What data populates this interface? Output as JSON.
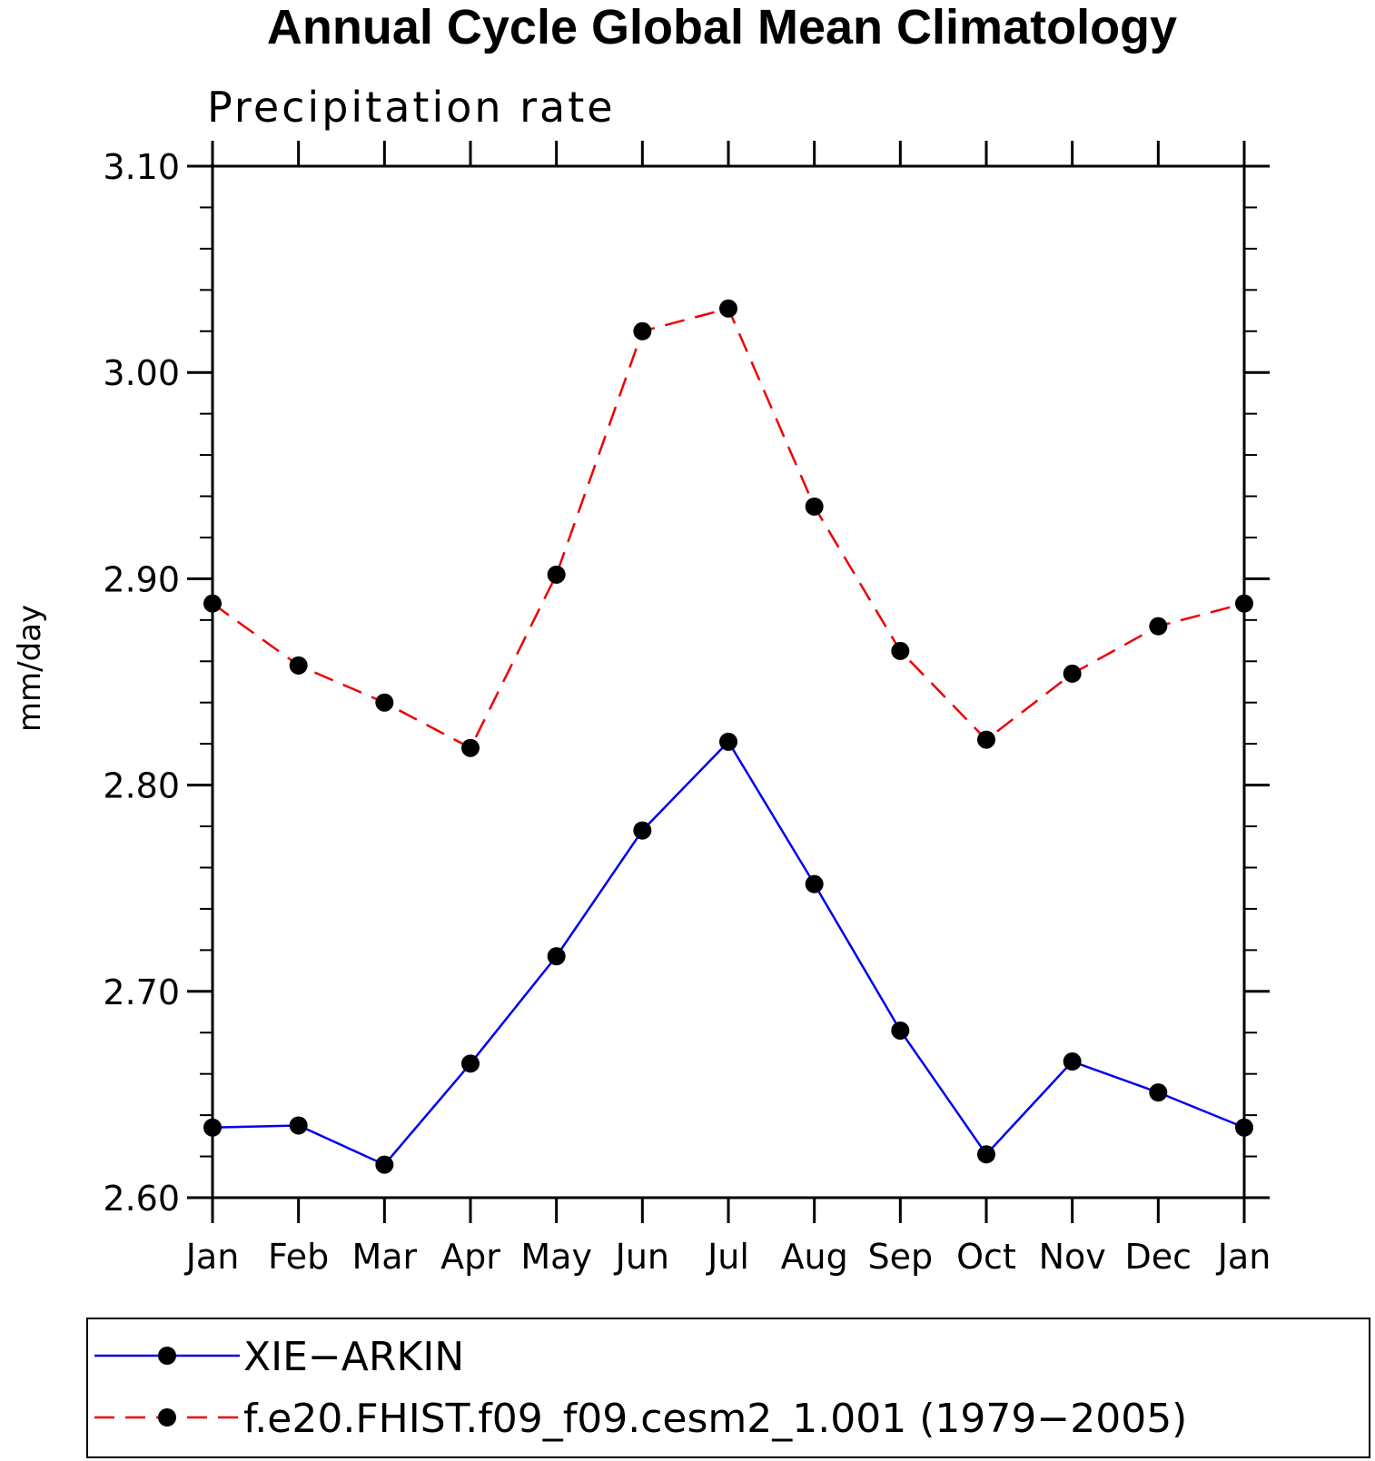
{
  "chart_data": {
    "type": "line",
    "title": "Annual Cycle Global Mean Climatology",
    "subtitle": "Precipitation rate",
    "ylabel": "mm/day",
    "xlabel": "",
    "categories": [
      "Jan",
      "Feb",
      "Mar",
      "Apr",
      "May",
      "Jun",
      "Jul",
      "Aug",
      "Sep",
      "Oct",
      "Nov",
      "Dec",
      "Jan"
    ],
    "ylim": [
      2.6,
      3.1
    ],
    "yticks": [
      2.6,
      2.7,
      2.8,
      2.9,
      3.0,
      3.1
    ],
    "ytick_labels": [
      "2.60",
      "2.70",
      "2.80",
      "2.90",
      "3.00",
      "3.10"
    ],
    "yminor_step": 0.02,
    "grid": false,
    "legend_position": "bottom",
    "series": [
      {
        "name": "XIE−ARKIN",
        "color": "#0000ee",
        "dash": "solid",
        "marker": "filled-circle",
        "values": [
          2.634,
          2.635,
          2.616,
          2.665,
          2.717,
          2.778,
          2.821,
          2.752,
          2.681,
          2.621,
          2.666,
          2.651,
          2.634
        ]
      },
      {
        "name": "f.e20.FHIST.f09_f09.cesm2_1.001 (1979−2005)",
        "color": "#ee0000",
        "dash": "dashed",
        "marker": "filled-circle",
        "values": [
          2.888,
          2.858,
          2.84,
          2.818,
          2.902,
          3.02,
          3.031,
          2.935,
          2.865,
          2.822,
          2.854,
          2.877,
          2.888
        ]
      }
    ]
  }
}
